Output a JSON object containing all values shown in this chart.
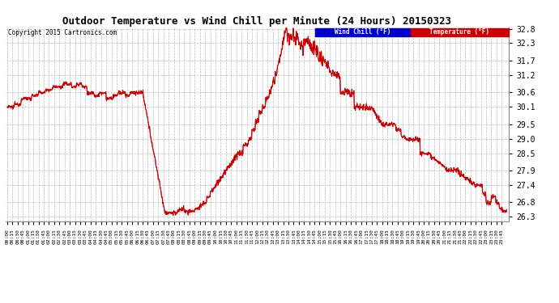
{
  "title": "Outdoor Temperature vs Wind Chill per Minute (24 Hours) 20150323",
  "copyright": "Copyright 2015 Cartronics.com",
  "ylim": [
    26.3,
    32.8
  ],
  "yticks": [
    26.3,
    26.8,
    27.4,
    27.9,
    28.5,
    29.0,
    29.5,
    30.1,
    30.6,
    31.2,
    31.7,
    32.3,
    32.8
  ],
  "line_color": "#cc0000",
  "bg_color": "#ffffff",
  "grid_color": "#bbbbbb",
  "legend_wind_chill_bg": "#0000cc",
  "legend_temp_bg": "#cc0000",
  "legend_wind_chill_text": "Wind Chill (°F)",
  "legend_temp_text": "Temperature (°F)"
}
